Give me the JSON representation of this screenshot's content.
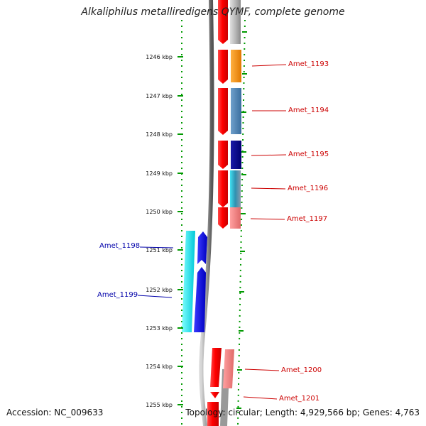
{
  "title": "Alkaliphilus metalliredigens QYMF, complete genome",
  "footer": {
    "accession": "Accession: NC_009633",
    "topology": "Topology: circular; Length: 4,929,566 bp; Genes: 4,763"
  },
  "ticks": [
    "1246 kbp",
    "1247 kbp",
    "1248 kbp",
    "1249 kbp",
    "1250 kbp",
    "1251 kbp",
    "1252 kbp",
    "1253 kbp",
    "1254 kbp",
    "1255 kbp"
  ],
  "colors": {
    "plus_label": "#cc0000",
    "minus_label": "#0000aa",
    "tick_green": "#009900"
  },
  "genes": [
    {
      "name": "Amet_1193",
      "strand": "+",
      "color": "#ff8c00"
    },
    {
      "name": "Amet_1194",
      "strand": "+",
      "color": "#4682b4"
    },
    {
      "name": "Amet_1195",
      "strand": "+",
      "color": "#00008b"
    },
    {
      "name": "Amet_1196",
      "strand": "+",
      "color": "#3ab8c8"
    },
    {
      "name": "Amet_1197",
      "strand": "+",
      "color": "#f08080"
    },
    {
      "name": "Amet_1198",
      "strand": "-",
      "color": "#00e5ee"
    },
    {
      "name": "Amet_1199",
      "strand": "-",
      "color": "#0000ff"
    },
    {
      "name": "Amet_1200",
      "strand": "+",
      "color": "#f08080"
    },
    {
      "name": "Amet_1201",
      "strand": "+",
      "color": "#ff0000"
    }
  ]
}
